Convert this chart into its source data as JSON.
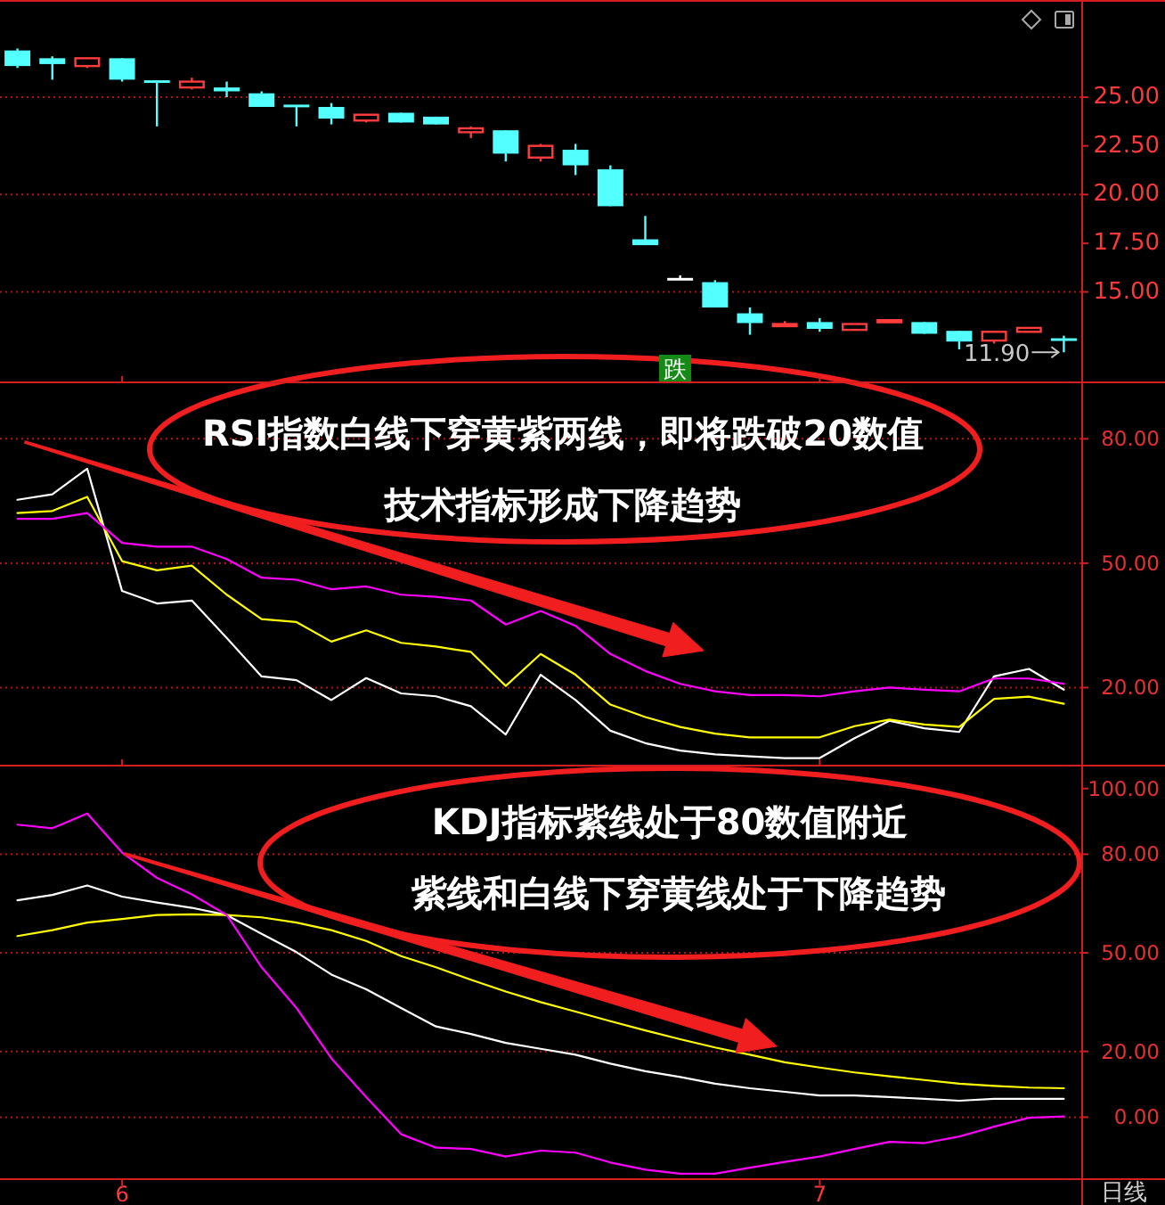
{
  "chart_data": [
    {
      "type": "candlestick",
      "categories": [
        null,
        null,
        null,
        "6",
        null,
        null,
        null,
        null,
        null,
        null,
        null,
        null,
        null,
        null,
        null,
        null,
        null,
        null,
        null,
        null,
        null,
        null,
        null,
        "7",
        null,
        null,
        null,
        null,
        null,
        null,
        null
      ],
      "ohlc": [
        [
          27.4,
          27.5,
          26.5,
          26.6
        ],
        [
          27.0,
          27.1,
          25.9,
          26.7
        ],
        [
          26.6,
          27.0,
          26.5,
          27.0
        ],
        [
          27.0,
          27.0,
          25.8,
          25.9
        ],
        [
          25.8,
          25.8,
          23.5,
          25.7
        ],
        [
          25.5,
          26.0,
          25.4,
          25.8
        ],
        [
          25.5,
          25.8,
          25.0,
          25.3
        ],
        [
          25.2,
          25.3,
          24.5,
          24.5
        ],
        [
          24.55,
          24.55,
          23.5,
          24.45
        ],
        [
          24.5,
          24.7,
          23.6,
          23.9
        ],
        [
          23.8,
          24.1,
          23.7,
          24.1
        ],
        [
          24.2,
          24.2,
          23.7,
          23.7
        ],
        [
          24.0,
          24.0,
          23.6,
          23.6
        ],
        [
          23.2,
          23.5,
          22.9,
          23.4
        ],
        [
          23.3,
          23.3,
          21.7,
          22.1
        ],
        [
          21.9,
          22.6,
          21.7,
          22.5
        ],
        [
          22.3,
          22.6,
          21.0,
          21.5
        ],
        [
          21.3,
          21.5,
          19.4,
          19.4
        ],
        [
          17.7,
          18.9,
          17.4,
          17.4
        ],
        [
          15.65,
          15.85,
          15.65,
          15.65
        ],
        [
          15.5,
          15.6,
          14.2,
          14.2
        ],
        [
          13.9,
          14.2,
          12.8,
          13.4
        ],
        [
          13.3,
          13.5,
          13.2,
          13.35
        ],
        [
          13.45,
          13.65,
          12.95,
          13.1
        ],
        [
          13.05,
          13.35,
          13.05,
          13.35
        ],
        [
          13.45,
          13.6,
          13.45,
          13.55
        ],
        [
          13.45,
          13.45,
          12.85,
          12.85
        ],
        [
          13.0,
          13.0,
          12.05,
          12.45
        ],
        [
          12.5,
          12.95,
          12.35,
          12.95
        ],
        [
          12.95,
          13.15,
          12.95,
          13.15
        ],
        [
          12.55,
          12.75,
          11.9,
          12.5
        ]
      ],
      "colors": [
        "#54ffff",
        "#54ffff",
        "#ff3c3c",
        "#54ffff",
        "#54ffff",
        "#ff3c3c",
        "#54ffff",
        "#54ffff",
        "#54ffff",
        "#54ffff",
        "#ff3c3c",
        "#54ffff",
        "#54ffff",
        "#ff3c3c",
        "#54ffff",
        "#ff3c3c",
        "#54ffff",
        "#54ffff",
        "#54ffff",
        "#ffffff",
        "#54ffff",
        "#54ffff",
        "#ff3c3c",
        "#54ffff",
        "#ff3c3c",
        "#ff3c3c",
        "#54ffff",
        "#54ffff",
        "#ff3c3c",
        "#ff3c3c",
        "#54ffff"
      ],
      "ylim": [
        10.4,
        29.9
      ],
      "yticks": [
        {
          "value": 15,
          "label": "15.00"
        },
        {
          "value": 17.5,
          "label": "17.50"
        },
        {
          "value": 20,
          "label": "20.00"
        },
        {
          "value": 22.5,
          "label": "22.50"
        },
        {
          "value": 25,
          "label": "25.00"
        }
      ],
      "ref_lines": [
        {
          "axis": "y",
          "value": 15,
          "color": "#b41414",
          "line_style": "dotted"
        },
        {
          "axis": "y",
          "value": 20,
          "color": "#b41414",
          "line_style": "dotted"
        },
        {
          "axis": "y",
          "value": 25,
          "color": "#b41414",
          "line_style": "dotted"
        }
      ],
      "tick_labels": "y",
      "annotations": [
        "11.90",
        "跌"
      ]
    },
    {
      "type": "line",
      "categories": [
        null,
        null,
        null,
        "6",
        null,
        null,
        null,
        null,
        null,
        null,
        null,
        null,
        null,
        null,
        null,
        null,
        null,
        null,
        null,
        null,
        null,
        null,
        null,
        "7",
        null,
        null,
        null,
        null,
        null,
        null,
        null
      ],
      "series": [
        {
          "color": "#ffffff",
          "values": [
            65.3,
            66.6,
            72.8,
            43.3,
            40.3,
            41.0,
            32.0,
            22.7,
            21.8,
            17.0,
            22.3,
            18.6,
            17.9,
            15.5,
            8.7,
            23.1,
            17.0,
            9.6,
            6.6,
            4.8,
            3.9,
            3.4,
            3.0,
            3.0,
            7.8,
            12.0,
            10.2,
            9.3,
            22.7,
            24.5,
            19.5
          ]
        },
        {
          "color": "#ffff00",
          "values": [
            62.1,
            62.6,
            66.0,
            50.5,
            48.3,
            49.4,
            42.4,
            36.5,
            35.8,
            31.1,
            33.8,
            30.8,
            29.9,
            28.6,
            20.4,
            28.1,
            23.1,
            15.9,
            12.9,
            10.5,
            8.9,
            8.0,
            8.0,
            8.0,
            10.7,
            12.3,
            11.1,
            10.5,
            17.3,
            17.8,
            16.1
          ]
        },
        {
          "color": "#ff00ff",
          "values": [
            60.7,
            60.7,
            62.1,
            54.9,
            54.0,
            54.0,
            51.0,
            46.5,
            46.0,
            43.7,
            44.4,
            42.4,
            41.9,
            41.0,
            35.2,
            38.5,
            34.9,
            28.1,
            24.0,
            20.9,
            19.1,
            18.2,
            18.2,
            17.9,
            19.1,
            20.0,
            19.5,
            19.1,
            22.2,
            22.2,
            20.9
          ]
        }
      ],
      "ylim": [
        1.4,
        93.4
      ],
      "yticks": [
        {
          "value": 20,
          "label": "20.00"
        },
        {
          "value": 50,
          "label": "50.00"
        },
        {
          "value": 80,
          "label": "80.00"
        }
      ],
      "grid": "y",
      "tick_labels": "y",
      "annotations": [
        "RSI指数白线下穿黄紫两线，即将跌破20数值",
        "技术指标形成下降趋势"
      ]
    },
    {
      "type": "line",
      "categories": [
        null,
        null,
        null,
        "6",
        null,
        null,
        null,
        null,
        null,
        null,
        null,
        null,
        null,
        null,
        null,
        null,
        null,
        null,
        null,
        null,
        null,
        null,
        null,
        "7",
        null,
        null,
        null,
        null,
        null,
        null,
        null
      ],
      "series": [
        {
          "color": "#ffffff",
          "values": [
            66.0,
            67.6,
            70.5,
            67.1,
            65.3,
            63.7,
            61.5,
            55.8,
            50.2,
            43.4,
            38.9,
            33.2,
            27.6,
            25.3,
            22.6,
            20.8,
            19.0,
            16.3,
            14.0,
            12.2,
            10.2,
            8.8,
            7.7,
            6.6,
            6.6,
            6.1,
            5.6,
            5.0,
            5.6,
            5.6,
            5.6
          ]
        },
        {
          "color": "#ffff00",
          "values": [
            55.1,
            56.9,
            59.2,
            60.3,
            61.5,
            61.7,
            61.5,
            60.8,
            59.2,
            56.9,
            53.6,
            49.0,
            45.6,
            41.8,
            38.2,
            35.0,
            32.1,
            29.2,
            26.4,
            23.7,
            21.2,
            19.0,
            16.7,
            15.1,
            13.6,
            12.4,
            11.3,
            10.2,
            9.5,
            9.0,
            8.8
          ]
        },
        {
          "color": "#ff00ff",
          "values": [
            89.0,
            87.9,
            92.4,
            80.5,
            72.8,
            67.8,
            61.5,
            45.6,
            33.2,
            17.9,
            6.1,
            -5.2,
            -9.3,
            -9.7,
            -12.0,
            -10.2,
            -10.8,
            -13.8,
            -16.0,
            -17.2,
            -17.2,
            -15.4,
            -13.6,
            -12.0,
            -9.7,
            -7.5,
            -7.9,
            -5.9,
            -2.9,
            -0.2,
            0.2
          ]
        }
      ],
      "ylim": [
        -18.6,
        106.7
      ],
      "yticks": [
        {
          "value": 0,
          "label": "0.00"
        },
        {
          "value": 20,
          "label": "20.00"
        },
        {
          "value": 50,
          "label": "50.00"
        },
        {
          "value": 80,
          "label": "80.00"
        },
        {
          "value": 100,
          "label": "100.00"
        }
      ],
      "ref_lines": [
        {
          "axis": "y",
          "value": 0,
          "color": "#b41414",
          "line_style": "dotted"
        },
        {
          "axis": "y",
          "value": 20,
          "color": "#b41414",
          "line_style": "dotted"
        },
        {
          "axis": "y",
          "value": 50,
          "color": "#b41414",
          "line_style": "dotted"
        },
        {
          "axis": "y",
          "value": 80,
          "color": "#b41414",
          "line_style": "dotted"
        }
      ],
      "annotations": [
        "KDJ指标紫线处于80数值附近",
        "紫线和白线下穿黄线处于下降趋势",
        "日线"
      ]
    }
  ]
}
